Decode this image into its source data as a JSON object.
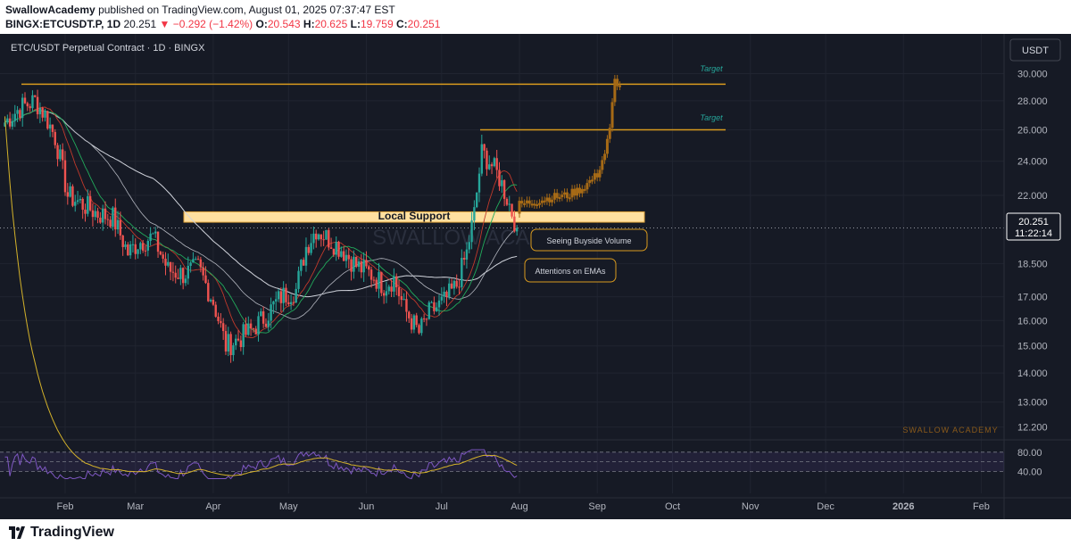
{
  "header": {
    "author": "SwallowAcademy",
    "published": "published on TradingView.com, August 01, 2025 07:37:47 EST",
    "symbol": "BINGX:ETCUSDT.P, 1D",
    "last": "20.251",
    "change_arrow": "▼",
    "change": "−0.292 (−1.42%)",
    "o_label": "O:",
    "o": "20.543",
    "h_label": "H:",
    "h": "20.625",
    "l_label": "L:",
    "l": "19.759",
    "c_label": "C:",
    "c": "20.251"
  },
  "chart_title": "ETC/USDT Perpetual Contract · 1D · BINGX",
  "currency_badge": "USDT",
  "price_box": {
    "price": "20.251",
    "countdown": "11:22:14"
  },
  "watermark_center": "SWALLOW ACADEMY",
  "watermark_small": "SWALLOW ACADEMY",
  "annotations": {
    "support": "Local Support",
    "volume": "Seeing Buyside Volume",
    "emas": "Attentions on EMAs",
    "target": "Target"
  },
  "footer": {
    "brand": "TradingView"
  },
  "colors": {
    "background": "#161a25",
    "up": "#26a69a",
    "down": "#ef5350",
    "projection": "#a66a16",
    "target_line": "#d89a1e",
    "support_fill": "#ffe0a0",
    "rsi": "#7e57c2",
    "rsi_ma": "#d4b22a"
  },
  "chart_data": {
    "type": "candlestick",
    "title": "ETC/USDT Perpetual Contract · 1D · BINGX",
    "y_scale": "log",
    "ylim": [
      12.0,
      31.0
    ],
    "y_ticks": [
      "30.000",
      "28.000",
      "26.000",
      "24.000",
      "22.000",
      "20.251",
      "18.500",
      "17.000",
      "16.000",
      "15.000",
      "14.000",
      "13.000",
      "12.200"
    ],
    "x_ticks": [
      "Feb",
      "Mar",
      "Apr",
      "May",
      "Jun",
      "Jul",
      "Aug",
      "Sep",
      "Oct",
      "Nov",
      "Dec",
      "2026",
      "Feb"
    ],
    "levels": {
      "support": [
        20.55,
        21.1
      ],
      "target_1": 26.0,
      "target_2": 29.2,
      "last_price": 20.251
    },
    "anchor_closes": [
      [
        "2025-01-08",
        26.5
      ],
      [
        "2025-01-14",
        27.5
      ],
      [
        "2025-01-20",
        28.0
      ],
      [
        "2025-01-24",
        27.0
      ],
      [
        "2025-01-28",
        25.5
      ],
      [
        "2025-02-02",
        22.0
      ],
      [
        "2025-02-08",
        21.5
      ],
      [
        "2025-02-14",
        21.0
      ],
      [
        "2025-02-20",
        20.8
      ],
      [
        "2025-02-26",
        19.0
      ],
      [
        "2025-03-02",
        19.5
      ],
      [
        "2025-03-08",
        19.8
      ],
      [
        "2025-03-14",
        18.2
      ],
      [
        "2025-03-20",
        18.0
      ],
      [
        "2025-03-26",
        18.3
      ],
      [
        "2025-04-01",
        16.8
      ],
      [
        "2025-04-06",
        15.0
      ],
      [
        "2025-04-10",
        15.2
      ],
      [
        "2025-04-16",
        15.6
      ],
      [
        "2025-04-22",
        16.2
      ],
      [
        "2025-04-28",
        17.0
      ],
      [
        "2025-05-04",
        17.3
      ],
      [
        "2025-05-08",
        19.3
      ],
      [
        "2025-05-12",
        20.2
      ],
      [
        "2025-05-16",
        19.8
      ],
      [
        "2025-05-22",
        19.2
      ],
      [
        "2025-05-28",
        18.4
      ],
      [
        "2025-06-03",
        18.0
      ],
      [
        "2025-06-08",
        17.5
      ],
      [
        "2025-06-12",
        17.8
      ],
      [
        "2025-06-16",
        16.5
      ],
      [
        "2025-06-22",
        15.5
      ],
      [
        "2025-06-26",
        16.3
      ],
      [
        "2025-07-02",
        16.8
      ],
      [
        "2025-07-07",
        17.5
      ],
      [
        "2025-07-11",
        19.0
      ],
      [
        "2025-07-14",
        21.0
      ],
      [
        "2025-07-17",
        24.5
      ],
      [
        "2025-07-20",
        24.0
      ],
      [
        "2025-07-24",
        23.0
      ],
      [
        "2025-07-28",
        21.5
      ],
      [
        "2025-07-31",
        20.251
      ]
    ],
    "projection_closes": [
      [
        "2025-08-01",
        21.5
      ],
      [
        "2025-08-08",
        21.7
      ],
      [
        "2025-08-14",
        21.9
      ],
      [
        "2025-08-20",
        22.0
      ],
      [
        "2025-08-26",
        22.4
      ],
      [
        "2025-09-01",
        23.2
      ],
      [
        "2025-09-04",
        24.5
      ],
      [
        "2025-09-06",
        26.0
      ],
      [
        "2025-09-08",
        29.5
      ],
      [
        "2025-09-10",
        29.0
      ]
    ],
    "ema_fast": [
      [
        0.68,
        17.5
      ],
      [
        0.72,
        18.4
      ],
      [
        0.755,
        19.2
      ],
      [
        0.79,
        20.0
      ],
      [
        0.82,
        20.3
      ]
    ],
    "rsi": {
      "levels": [
        40.0,
        80.0
      ],
      "y_ticks": [
        "80.00",
        "40.00"
      ],
      "last_values": [
        60,
        70,
        45
      ]
    }
  }
}
